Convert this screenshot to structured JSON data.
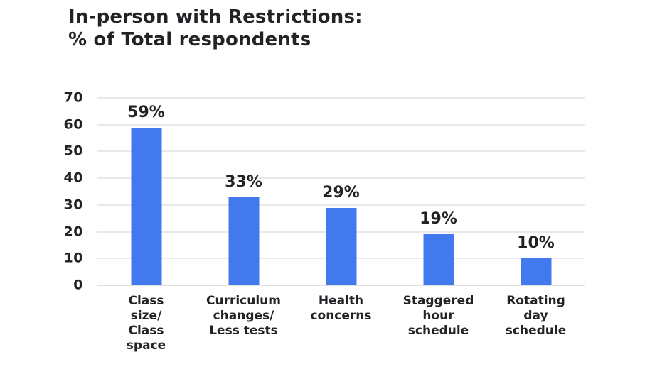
{
  "page": {
    "background": "#ffffff"
  },
  "chart_data": {
    "type": "bar",
    "title": "In-person with Restrictions:\n% of Total respondents",
    "categories": [
      "Class\nsize/\nClass\nspace",
      "Curriculum\nchanges/\nLess tests",
      "Health\nconcerns",
      "Staggered\nhour\nschedule",
      "Rotating\nday\nschedule"
    ],
    "values": [
      59,
      33,
      29,
      19,
      10
    ],
    "value_labels": [
      "59%",
      "33%",
      "29%",
      "19%",
      "10%"
    ],
    "xlabel": "",
    "ylabel": "",
    "ylim": [
      0,
      70
    ],
    "yticks": [
      0,
      10,
      20,
      30,
      40,
      50,
      60,
      70
    ],
    "grid": "horizontal",
    "legend": "none",
    "bar_color": "#4379EE",
    "text_color": "#232327",
    "grid_color": "#e9e9e9",
    "axis_line_color": "#dedede"
  }
}
